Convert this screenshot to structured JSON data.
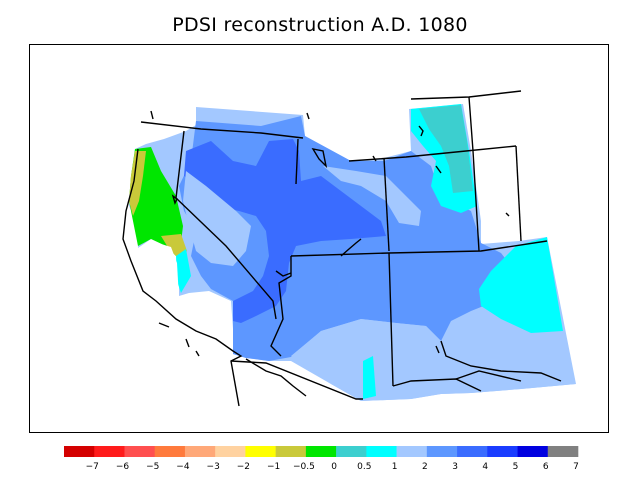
{
  "title": "PDSI reconstruction A.D. 1080",
  "legend": {
    "colors": [
      "#d40000",
      "#ff1b1b",
      "#ff4f4f",
      "#ff7a3c",
      "#ffa878",
      "#ffd2a0",
      "#ffff00",
      "#c9c93a",
      "#00e600",
      "#3ccfcf",
      "#00ffff",
      "#a3c8ff",
      "#5d97ff",
      "#3a6cff",
      "#1a3cff",
      "#0000e0",
      "#808080"
    ],
    "labels": [
      "−7",
      "−6",
      "−5",
      "−4",
      "−3",
      "−2",
      "−1",
      "−0.5",
      "0",
      "0.5",
      "1",
      "2",
      "3",
      "4",
      "5",
      "6",
      "7"
    ]
  },
  "palette": {
    "very_wet_band": "#3a6cff",
    "wet": "#5d97ff",
    "moderate": "#a3c8ff",
    "cyan": "#00ffff",
    "teal": "#3ccfcf",
    "green": "#00e600",
    "olive": "#c9c93a"
  }
}
